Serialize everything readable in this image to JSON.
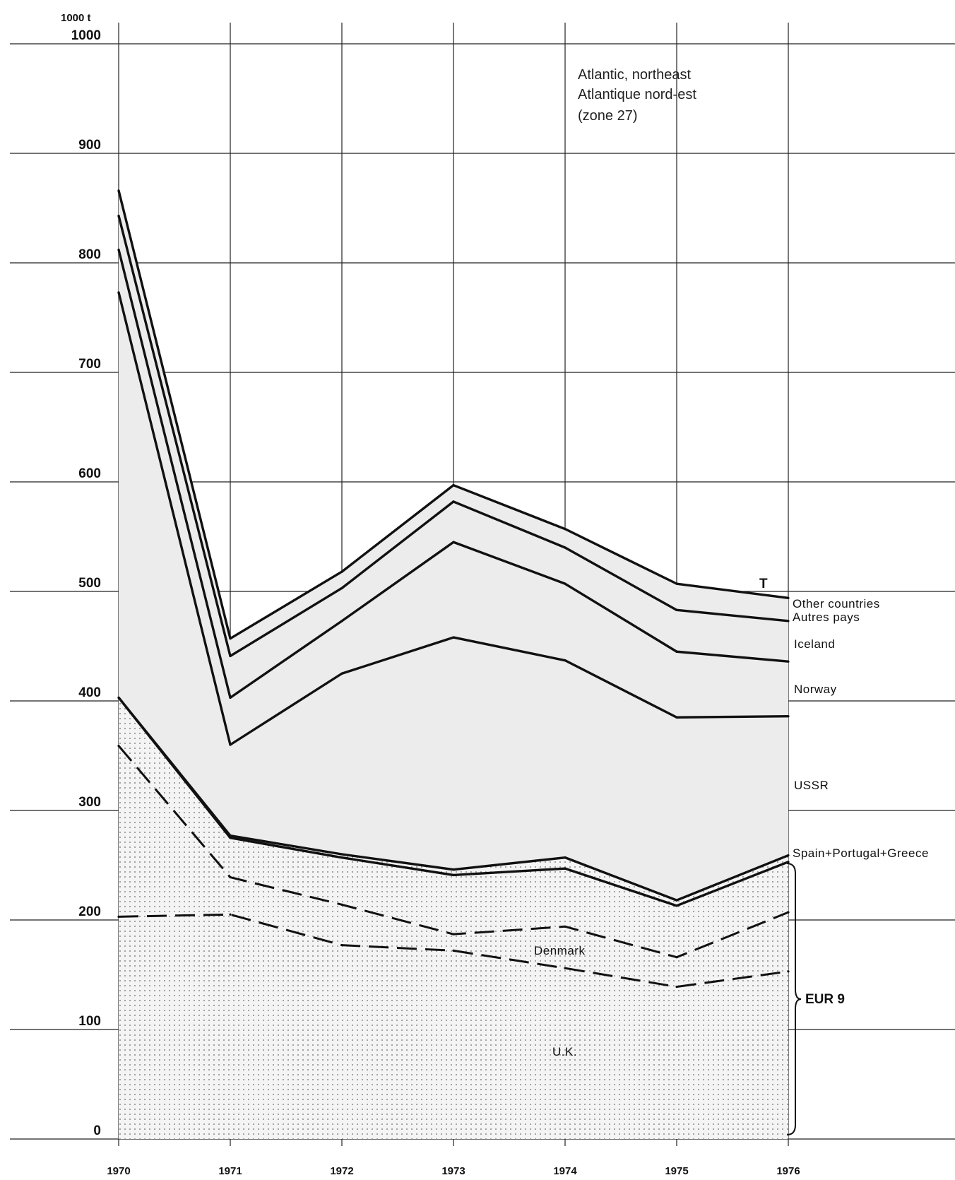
{
  "chart_data": {
    "type": "area",
    "title_lines": [
      "Atlantic, northeast",
      "Atlantique nord-est",
      "(zone 27)"
    ],
    "unit_label": "1000 t",
    "x": [
      "1970",
      "1971",
      "1972",
      "1973",
      "1974",
      "1975",
      "1976"
    ],
    "y_ticks": [
      "0",
      "100",
      "200",
      "300",
      "400",
      "500",
      "600",
      "700",
      "800",
      "900",
      "1000"
    ],
    "ylim": [
      0,
      1000
    ],
    "grid": true,
    "series": [
      {
        "name": "U.K.",
        "style": "dashed",
        "values": [
          203,
          205,
          177,
          172,
          156,
          139,
          153
        ]
      },
      {
        "name": "Denmark",
        "style": "dashed",
        "values": [
          359,
          239,
          214,
          187,
          194,
          166,
          207
        ]
      },
      {
        "name": "",
        "style": "solid",
        "values": [
          403,
          275,
          257,
          241,
          247,
          213,
          253
        ]
      },
      {
        "name": "Spain+Portugal+Greece",
        "style": "solid",
        "values": [
          403,
          277,
          260,
          246,
          257,
          218,
          259
        ]
      },
      {
        "name": "USSR",
        "style": "solid",
        "values": [
          773,
          360,
          425,
          458,
          437,
          385,
          386
        ]
      },
      {
        "name": "Norway",
        "style": "solid",
        "values": [
          812,
          403,
          473,
          545,
          507,
          445,
          436
        ]
      },
      {
        "name": "Iceland",
        "style": "solid",
        "values": [
          843,
          441,
          503,
          582,
          540,
          483,
          473
        ]
      },
      {
        "name": "Other countries / Autres pays",
        "style": "solid",
        "values": [
          866,
          457,
          518,
          597,
          557,
          507,
          494
        ]
      }
    ],
    "labels": {
      "total": "T",
      "other_en": "Other countries",
      "other_fr": "Autres pays",
      "iceland": "Iceland",
      "norway": "Norway",
      "ussr": "USSR",
      "spg": "Spain+Portugal+Greece",
      "denmark": "Denmark",
      "uk": "U.K.",
      "eur9": "EUR 9"
    }
  }
}
